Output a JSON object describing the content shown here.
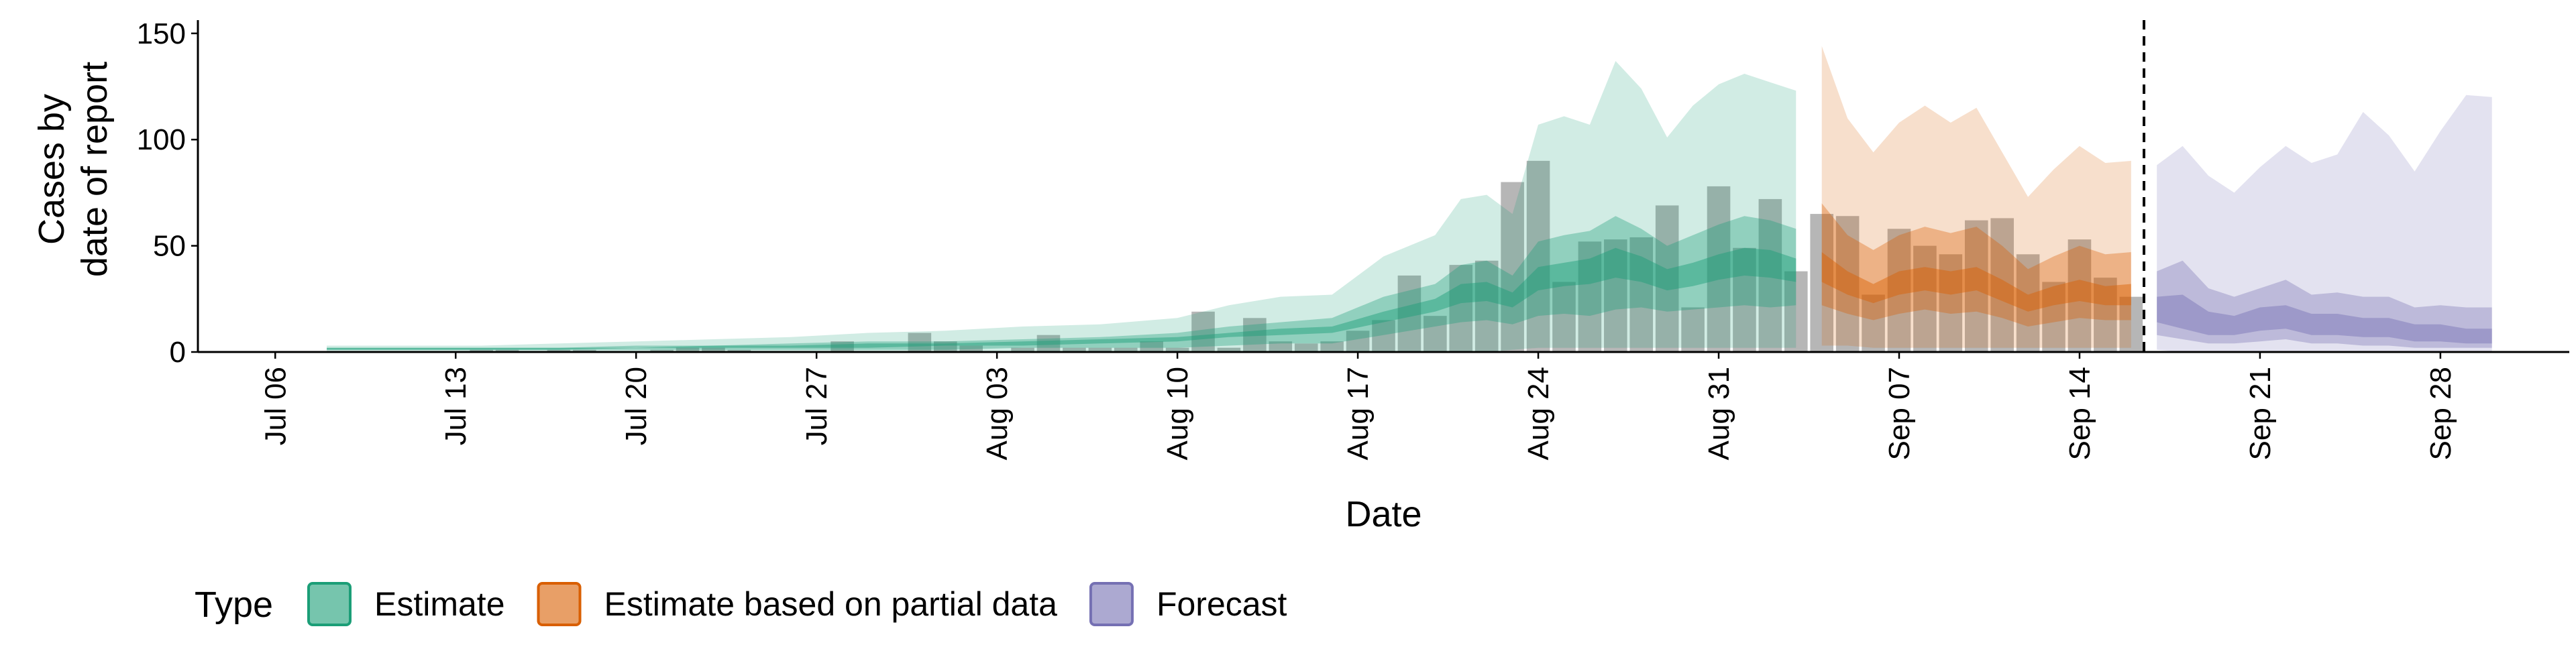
{
  "chart_data": {
    "type": "area",
    "xlabel": "Date",
    "ylabel_lines": [
      "Cases by",
      "date of report"
    ],
    "ylim": [
      0,
      150
    ],
    "y_ticks": [
      0,
      50,
      100,
      150
    ],
    "x_range": [
      "2020-07-03",
      "2020-10-03"
    ],
    "x_ticks": [
      {
        "date": "2020-07-06",
        "label": "Jul 06"
      },
      {
        "date": "2020-07-13",
        "label": "Jul 13"
      },
      {
        "date": "2020-07-20",
        "label": "Jul 20"
      },
      {
        "date": "2020-07-27",
        "label": "Jul 27"
      },
      {
        "date": "2020-08-03",
        "label": "Aug 03"
      },
      {
        "date": "2020-08-10",
        "label": "Aug 10"
      },
      {
        "date": "2020-08-17",
        "label": "Aug 17"
      },
      {
        "date": "2020-08-24",
        "label": "Aug 24"
      },
      {
        "date": "2020-08-31",
        "label": "Aug 31"
      },
      {
        "date": "2020-09-07",
        "label": "Sep 07"
      },
      {
        "date": "2020-09-14",
        "label": "Sep 14"
      },
      {
        "date": "2020-09-21",
        "label": "Sep 21"
      },
      {
        "date": "2020-09-28",
        "label": "Sep 28"
      }
    ],
    "forecast_start": "2020-09-16",
    "legend": {
      "title": "Type",
      "position": "bottom",
      "items": [
        {
          "name": "Estimate",
          "color": "#1b9e77"
        },
        {
          "name": "Estimate based on partial data",
          "color": "#d95f02"
        },
        {
          "name": "Forecast",
          "color": "#7570b3"
        }
      ]
    },
    "bars": {
      "color": "#9e9e9e",
      "dates": [
        "2020-07-14",
        "2020-07-15",
        "2020-07-17",
        "2020-07-18",
        "2020-07-21",
        "2020-07-22",
        "2020-07-23",
        "2020-07-24",
        "2020-07-28",
        "2020-07-31",
        "2020-08-01",
        "2020-08-02",
        "2020-08-04",
        "2020-08-05",
        "2020-08-06",
        "2020-08-07",
        "2020-08-08",
        "2020-08-09",
        "2020-08-10",
        "2020-08-11",
        "2020-08-12",
        "2020-08-13",
        "2020-08-14",
        "2020-08-15",
        "2020-08-16",
        "2020-08-17",
        "2020-08-18",
        "2020-08-19",
        "2020-08-20",
        "2020-08-21",
        "2020-08-22",
        "2020-08-23",
        "2020-08-24",
        "2020-08-25",
        "2020-08-26",
        "2020-08-27",
        "2020-08-28",
        "2020-08-29",
        "2020-08-30",
        "2020-08-31",
        "2020-09-01",
        "2020-09-02",
        "2020-09-03",
        "2020-09-04",
        "2020-09-05",
        "2020-09-06",
        "2020-09-07",
        "2020-09-08",
        "2020-09-09",
        "2020-09-10",
        "2020-09-11",
        "2020-09-12",
        "2020-09-13",
        "2020-09-14",
        "2020-09-15",
        "2020-09-16"
      ],
      "values": [
        1,
        1,
        1,
        1,
        1,
        2,
        2,
        1,
        5,
        9,
        5,
        3,
        2,
        8,
        2,
        2,
        2,
        5,
        2,
        19,
        2,
        16,
        5,
        4,
        5,
        10,
        15,
        36,
        17,
        41,
        43,
        80,
        90,
        33,
        52,
        53,
        54,
        69,
        21,
        78,
        49,
        72,
        38,
        65,
        64,
        27,
        58,
        50,
        46,
        62,
        63,
        46,
        33,
        53,
        35,
        26
      ]
    },
    "series": [
      {
        "name": "Estimate",
        "dates": [
          "2020-07-08",
          "2020-07-11",
          "2020-07-14",
          "2020-07-17",
          "2020-07-20",
          "2020-07-23",
          "2020-07-26",
          "2020-07-29",
          "2020-08-01",
          "2020-08-04",
          "2020-08-07",
          "2020-08-10",
          "2020-08-12",
          "2020-08-14",
          "2020-08-16",
          "2020-08-18",
          "2020-08-20",
          "2020-08-21",
          "2020-08-22",
          "2020-08-23",
          "2020-08-24",
          "2020-08-25",
          "2020-08-26",
          "2020-08-27",
          "2020-08-28",
          "2020-08-29",
          "2020-08-30",
          "2020-08-31",
          "2020-09-01",
          "2020-09-02",
          "2020-09-03"
        ],
        "lower90": [
          0,
          0,
          0,
          0,
          0,
          0,
          0,
          0,
          0,
          0,
          0,
          0,
          0,
          0,
          0,
          0,
          0,
          0,
          0,
          1,
          2,
          2,
          2,
          2,
          2,
          2,
          2,
          2,
          2,
          2,
          2
        ],
        "upper90": [
          3,
          3,
          3,
          4,
          5,
          6,
          7,
          9,
          10,
          12,
          13,
          16,
          22,
          26,
          27,
          45,
          55,
          72,
          74,
          65,
          107,
          111,
          107,
          137,
          124,
          101,
          116,
          126,
          131,
          127,
          123
        ],
        "lower50": [
          1,
          1,
          1,
          1,
          1,
          1,
          1,
          1,
          1,
          2,
          2,
          2,
          3,
          4,
          4,
          8,
          12,
          14,
          15,
          13,
          17,
          18,
          17,
          20,
          21,
          19,
          20,
          21,
          22,
          21,
          22
        ],
        "upper50": [
          2,
          2,
          2,
          2,
          3,
          3,
          4,
          5,
          5,
          6,
          7,
          9,
          12,
          14,
          16,
          26,
          32,
          41,
          43,
          36,
          52,
          55,
          57,
          64,
          58,
          50,
          55,
          60,
          64,
          62,
          58
        ],
        "lower20": [
          1,
          1,
          1,
          1,
          2,
          2,
          2,
          2,
          3,
          3,
          4,
          5,
          7,
          8,
          9,
          14,
          19,
          23,
          24,
          21,
          29,
          31,
          32,
          35,
          33,
          29,
          31,
          34,
          36,
          35,
          33
        ],
        "upper20": [
          2,
          2,
          2,
          2,
          2,
          3,
          3,
          4,
          4,
          5,
          6,
          7,
          9,
          11,
          12,
          19,
          25,
          32,
          33,
          28,
          40,
          42,
          44,
          49,
          45,
          39,
          42,
          46,
          49,
          48,
          44
        ]
      },
      {
        "name": "Estimate based on partial data",
        "dates": [
          "2020-09-04",
          "2020-09-05",
          "2020-09-06",
          "2020-09-07",
          "2020-09-08",
          "2020-09-09",
          "2020-09-10",
          "2020-09-11",
          "2020-09-12",
          "2020-09-13",
          "2020-09-14",
          "2020-09-15",
          "2020-09-16"
        ],
        "lower90": [
          3,
          3,
          2,
          2,
          2,
          2,
          2,
          2,
          2,
          2,
          2,
          2,
          2
        ],
        "upper90": [
          144,
          110,
          94,
          108,
          116,
          108,
          115,
          94,
          73,
          86,
          97,
          89,
          90
        ],
        "lower50": [
          22,
          18,
          15,
          18,
          20,
          18,
          19,
          16,
          12,
          14,
          16,
          15,
          15
        ],
        "upper50": [
          70,
          55,
          48,
          55,
          59,
          56,
          59,
          50,
          39,
          45,
          50,
          46,
          47
        ],
        "lower20": [
          33,
          27,
          23,
          27,
          29,
          27,
          29,
          24,
          19,
          22,
          24,
          22,
          22
        ],
        "upper20": [
          47,
          38,
          32,
          38,
          40,
          38,
          40,
          34,
          27,
          31,
          34,
          31,
          32
        ]
      },
      {
        "name": "Forecast",
        "dates": [
          "2020-09-17",
          "2020-09-18",
          "2020-09-19",
          "2020-09-20",
          "2020-09-21",
          "2020-09-22",
          "2020-09-23",
          "2020-09-24",
          "2020-09-25",
          "2020-09-26",
          "2020-09-27",
          "2020-09-28",
          "2020-09-29",
          "2020-09-30"
        ],
        "lower90": [
          1,
          0,
          0,
          0,
          0,
          0,
          0,
          0,
          0,
          0,
          0,
          0,
          0,
          0
        ],
        "upper90": [
          88,
          97,
          83,
          75,
          87,
          97,
          89,
          93,
          113,
          102,
          85,
          104,
          121,
          120
        ],
        "lower50": [
          8,
          6,
          4,
          4,
          5,
          6,
          4,
          4,
          3,
          3,
          2,
          2,
          2,
          2
        ],
        "upper50": [
          38,
          43,
          30,
          26,
          30,
          34,
          27,
          28,
          26,
          26,
          21,
          22,
          21,
          21
        ],
        "lower20": [
          14,
          11,
          8,
          8,
          10,
          11,
          8,
          8,
          7,
          7,
          5,
          5,
          4,
          4
        ],
        "upper20": [
          26,
          27,
          19,
          17,
          21,
          22,
          18,
          18,
          16,
          16,
          13,
          13,
          11,
          11
        ]
      }
    ]
  }
}
